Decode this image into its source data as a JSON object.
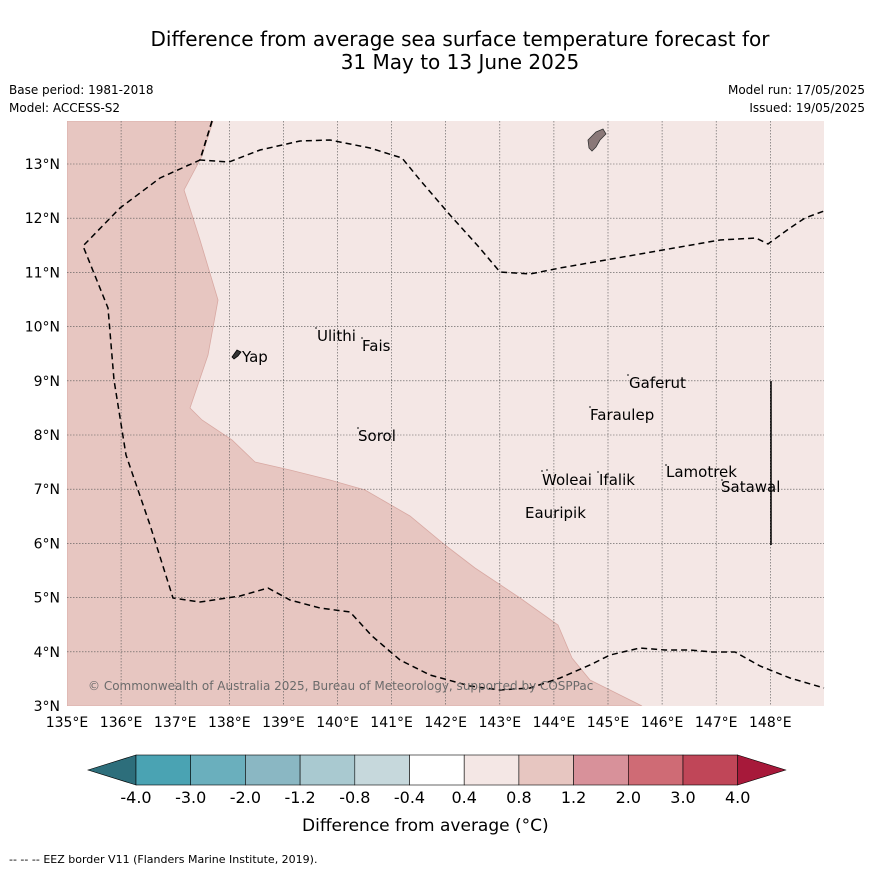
{
  "header": {
    "title_line1": "Difference from average sea surface temperature forecast for",
    "title_line2": "31 May to 13 June 2025",
    "base_period": "Base period: 1981-2018",
    "model": "Model: ACCESS-S2",
    "model_run": "Model run: 17/05/2025",
    "issued": "Issued: 19/05/2025"
  },
  "map": {
    "lon_ticks": [
      "135°E",
      "136°E",
      "137°E",
      "138°E",
      "139°E",
      "140°E",
      "141°E",
      "142°E",
      "143°E",
      "144°E",
      "145°E",
      "146°E",
      "147°E",
      "148°E"
    ],
    "lat_ticks": [
      "3°N",
      "4°N",
      "5°N",
      "6°N",
      "7°N",
      "8°N",
      "9°N",
      "10°N",
      "11°N",
      "12°N",
      "13°N"
    ],
    "places": [
      "Yap",
      "Ulithi",
      "Fais",
      "Gaferut",
      "Faraulep",
      "Sorol",
      "Woleai",
      "Ifalik",
      "Lamotrek",
      "Satawal",
      "Eauripik"
    ],
    "copyright": "© Commonwealth of Australia 2025, Bureau of Meteorology, supported by COSPPac",
    "colors": {
      "range_0_4_0_8": "#f4e7e5",
      "range_0_8_1_2": "#e7c6c1"
    }
  },
  "colorbar": {
    "labels": [
      "-4.0",
      "-3.0",
      "-2.0",
      "-1.2",
      "-0.8",
      "-0.4",
      "0.4",
      "0.8",
      "1.2",
      "2.0",
      "3.0",
      "4.0"
    ],
    "colors": [
      "#2d6e7b",
      "#4aa3b3",
      "#6aafbd",
      "#8ab7c3",
      "#a9c9d0",
      "#c6d8dc",
      "#ffffff",
      "#f4e7e5",
      "#e7c6c1",
      "#d8919a",
      "#cf6b75",
      "#c04658",
      "#a7193a"
    ],
    "title": "Difference from average (°C)"
  },
  "footer": {
    "legend_symbol": "--  --  --",
    "legend_text": "EEZ border V11 (Flanders Marine Institute, 2019)."
  }
}
